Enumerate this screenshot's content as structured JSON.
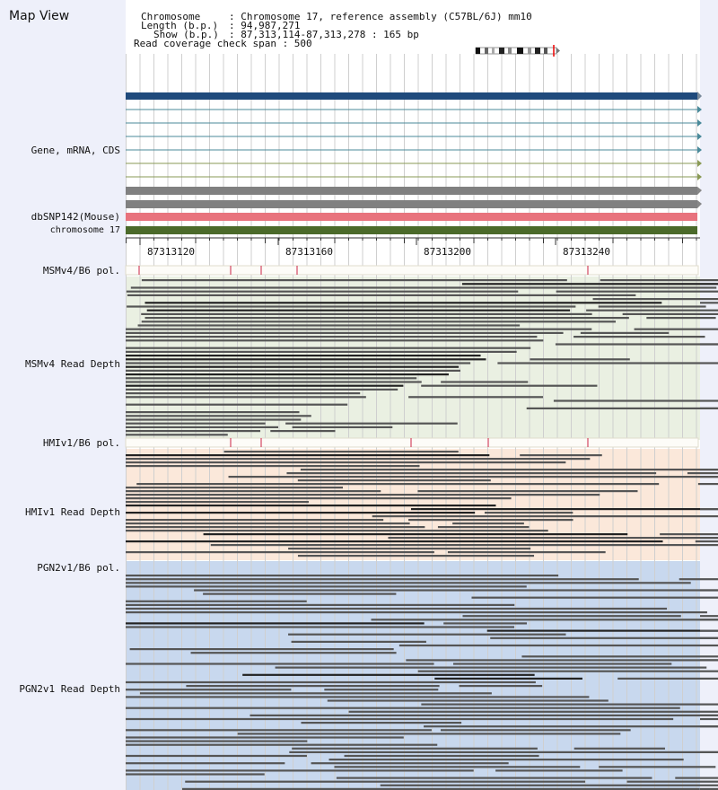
{
  "view": {
    "title": "Map View",
    "chromosome_key": "Chromosome",
    "chromosome_value": ": Chromosome 17, reference assembly (C57BL/6J) mm10",
    "length_key": "Length (b.p.)",
    "length_value": ": 94,987,271",
    "show_key": "Show (b.p.)",
    "show_value": ": 87,313,114-87,313,278 : 165 bp",
    "coverage_line": "Read coverage check span : 500"
  },
  "tracks": {
    "gene": "Gene, mRNA, CDS",
    "dbsnp": "dbSNP142(Mouse)",
    "chromosome": "chromosome 17",
    "msm_pol": "MSMv4/B6 pol.",
    "msm_depth": "MSMv4 Read Depth",
    "hmi_pol": "HMIv1/B6 pol.",
    "hmi_depth": "HMIv1 Read Depth",
    "pgn_pol": "PGN2v1/B6 pol.",
    "pgn_depth": "PGN2v1 Read Depth"
  },
  "ruler": {
    "ticks": [
      "87313120",
      "87313160",
      "87313200",
      "87313240"
    ]
  },
  "colors": {
    "gene_main": "#1f4a7c",
    "transcript": "#4a8a9a",
    "transcript_olive": "#8a9a55",
    "grey_bar": "#808080",
    "dbsnp": "#e8737d",
    "chromosome": "#4b6a2a",
    "msm_bg": "#eaf0e2",
    "hmi_bg": "#fbe8da",
    "pgn_bg": "#c8d8ee",
    "variant": "#cc2244"
  },
  "icons": [
    "chromosome-ideogram-icon",
    "track-arrow-icon"
  ]
}
